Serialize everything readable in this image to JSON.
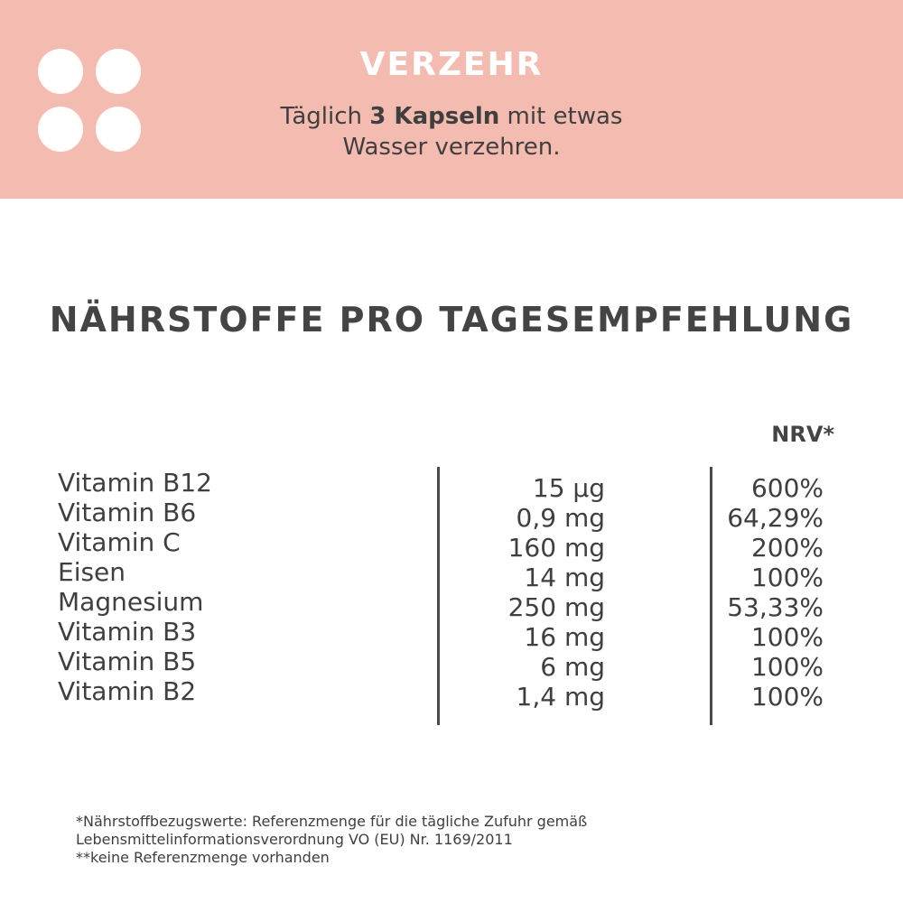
{
  "banner": {
    "title": "VERZEHR",
    "text_before": "Täglich ",
    "text_bold": "3 Kapseln",
    "text_after": " mit etwas",
    "text_line2": "Wasser verzehren."
  },
  "section_title": "NÄHRSTOFFE PRO TAGESEMPFEHLUNG",
  "table": {
    "nrv_header": "NRV*",
    "rows": [
      {
        "name": "Vitamin B12",
        "amount": "15 µg",
        "nrv": "600%"
      },
      {
        "name": "Vitamin B6",
        "amount": "0,9 mg",
        "nrv": "64,29%"
      },
      {
        "name": "Vitamin C",
        "amount": "160 mg",
        "nrv": "200%"
      },
      {
        "name": "Eisen",
        "amount": "14 mg",
        "nrv": "100%"
      },
      {
        "name": "Magnesium",
        "amount": "250 mg",
        "nrv": "53,33%"
      },
      {
        "name": "Vitamin B3",
        "amount": "16 mg",
        "nrv": "100%"
      },
      {
        "name": "Vitamin B5",
        "amount": "6 mg",
        "nrv": "100%"
      },
      {
        "name": "Vitamin B2",
        "amount": "1,4 mg",
        "nrv": "100%"
      }
    ]
  },
  "footnotes": [
    "*Nährstoffbezugswerte: Referenzmenge für die tägliche Zufuhr gemäß",
    "Lebensmittelinformationsverordnung VO (EU) Nr. 1169/2011",
    "**keine Referenzmenge vorhanden"
  ],
  "colors": {
    "banner_background": "#f4bcb0",
    "text": "#3f3f3f",
    "banner_title": "#ffffff"
  }
}
